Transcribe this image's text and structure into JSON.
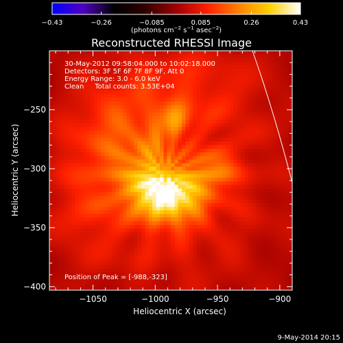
{
  "chart_data": {
    "type": "heatmap",
    "title": "Reconstructed RHESSI Image",
    "xlabel": "Heliocentric X (arcsec)",
    "ylabel": "Heliocentric Y (arcsec)",
    "xlim": [
      -1085,
      -890
    ],
    "ylim": [
      -403,
      -200
    ],
    "x_ticks": [
      -1050,
      -1000,
      -950,
      -900
    ],
    "y_ticks": [
      -250,
      -300,
      -350,
      -400
    ],
    "x_tick_labels": [
      "−1050",
      "−1000",
      "−950",
      "−900"
    ],
    "y_tick_labels": [
      "−250",
      "−300",
      "−350",
      "−400"
    ],
    "colorbar": {
      "min": -0.43,
      "max": 0.43,
      "ticks": [
        -0.43,
        -0.26,
        -0.085,
        0.085,
        0.26,
        0.43
      ],
      "tick_labels": [
        "−0.43",
        "−0.26",
        "−0.085",
        "0.085",
        "0.26",
        "0.43"
      ],
      "unit_parts": [
        "(photons cm",
        "−2",
        " s",
        "−1",
        " asec",
        "−2",
        ")"
      ],
      "colors": [
        "#0000ff",
        "#5000c0",
        "#000000",
        "#300000",
        "#a00000",
        "#ff2000",
        "#ff8000",
        "#ffd000",
        "#ffffff"
      ]
    },
    "annotations": [
      "30-May-2012 09:58:04.000 to 10:02:18.000",
      "Detectors: 3F 5F 6F 7F 8F 9F, Att 0",
      "Energy Range: 3.0 - 6.0 keV",
      "Clean     Total counts: 3.53E+04"
    ],
    "peak_label": "Position of Peak = [-988,-323]",
    "peak": [
      -988,
      -323
    ],
    "sources": [
      {
        "x": -990,
        "y": -323,
        "sx": 19,
        "sy": 15,
        "amp": 0.34
      },
      {
        "x": -1007,
        "y": -308,
        "sx": 14,
        "sy": 12,
        "amp": 0.1
      },
      {
        "x": -986,
        "y": -258,
        "sx": 8,
        "sy": 11,
        "amp": 0.13
      },
      {
        "x": -1002,
        "y": -283,
        "sx": 9,
        "sy": 9,
        "amp": 0.07
      },
      {
        "x": -957,
        "y": -304,
        "sx": 13,
        "sy": 11,
        "amp": 0.1
      },
      {
        "x": -943,
        "y": -296,
        "sx": 9,
        "sy": 9,
        "amp": 0.05
      },
      {
        "x": -1032,
        "y": -276,
        "sx": 24,
        "sy": 28,
        "amp": 0.09
      },
      {
        "x": -1055,
        "y": -335,
        "sx": 20,
        "sy": 26,
        "amp": 0.05
      },
      {
        "x": -975,
        "y": -230,
        "sx": 45,
        "sy": 25,
        "amp": 0.05
      },
      {
        "x": -992,
        "y": -305,
        "sx": 70,
        "sy": 80,
        "amp": 0.1
      }
    ],
    "background_level": 0.0,
    "limb_curve": [
      [
        -922,
        -200
      ],
      [
        -905,
        -250
      ],
      [
        -888,
        -320
      ]
    ],
    "grid": false
  },
  "footer": {
    "date": "9-May-2014 20:15"
  }
}
